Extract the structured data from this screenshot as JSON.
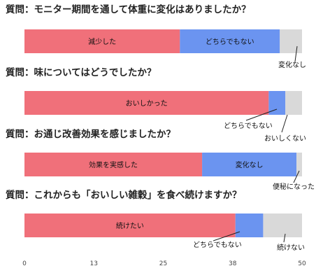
{
  "chart_data": {
    "type": "bar",
    "orientation": "horizontal",
    "stacked": true,
    "xlim": [
      0,
      50
    ],
    "x_ticks": [
      "0",
      "13",
      "25",
      "38",
      "50"
    ],
    "colors": {
      "pink": "#f0707a",
      "blue": "#6b94f0",
      "gray": "#d9d9d9"
    },
    "questions": [
      {
        "title": "質問：モニター期間を通して体重に変化はありましたか？",
        "segments": [
          {
            "label": "減少した",
            "value": 28,
            "color": "#f0707a",
            "label_inside": true
          },
          {
            "label": "どちらでもない",
            "value": 18,
            "color": "#6b94f0",
            "label_inside": true
          },
          {
            "label": "変化なし",
            "value": 4,
            "color": "#d9d9d9",
            "label_inside": false
          }
        ]
      },
      {
        "title": "質問：味についてはどうでしたか？",
        "segments": [
          {
            "label": "おいしかった",
            "value": 44,
            "color": "#f0707a",
            "label_inside": true
          },
          {
            "label": "どちらでもない",
            "value": 3,
            "color": "#6b94f0",
            "label_inside": false
          },
          {
            "label": "おいしくない",
            "value": 3,
            "color": "#d9d9d9",
            "label_inside": false
          }
        ]
      },
      {
        "title": "質問：お通じ改善効果を感じましたか？",
        "segments": [
          {
            "label": "効果を実感した",
            "value": 32,
            "color": "#f0707a",
            "label_inside": true
          },
          {
            "label": "変化なし",
            "value": 17,
            "color": "#6b94f0",
            "label_inside": true
          },
          {
            "label": "便秘になった",
            "value": 1,
            "color": "#d9d9d9",
            "label_inside": false
          }
        ]
      },
      {
        "title": "質問：これからも「おいしい雑穀」を食べ続けますか？",
        "segments": [
          {
            "label": "続けたい",
            "value": 38,
            "color": "#f0707a",
            "label_inside": true
          },
          {
            "label": "どちらでもない",
            "value": 5,
            "color": "#6b94f0",
            "label_inside": false
          },
          {
            "label": "続けない",
            "value": 7,
            "color": "#d9d9d9",
            "label_inside": false
          }
        ]
      }
    ]
  }
}
